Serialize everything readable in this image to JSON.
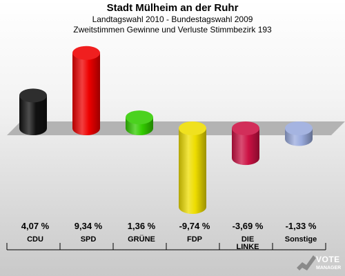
{
  "header": {
    "title": "Stadt Mülheim an der Ruhr",
    "subtitle1": "Landtagswahl 2010 - Bundestagswahl 2009",
    "subtitle2": "Zweitstimmen Gewinne und Verluste Stimmbezirk 193"
  },
  "chart_data": {
    "type": "bar",
    "title": "Stadt Mülheim an der Ruhr",
    "subtitle": "Landtagswahl 2010 - Bundestagswahl 2009 / Zweitstimmen Gewinne und Verluste Stimmbezirk 193",
    "unit": "%",
    "categories": [
      "CDU",
      "SPD",
      "GRÜNE",
      "FDP",
      "DIE LINKE",
      "Sonstige"
    ],
    "category_lines": [
      [
        "CDU"
      ],
      [
        "SPD"
      ],
      [
        "GRÜNE"
      ],
      [
        "FDP"
      ],
      [
        "DIE",
        "LINKE"
      ],
      [
        "Sonstige"
      ]
    ],
    "values": [
      4.07,
      9.34,
      1.36,
      -9.74,
      -3.69,
      -1.33
    ],
    "value_labels": [
      "4,07 %",
      "9,34 %",
      "1,36 %",
      "-9,74 %",
      "-3,69 %",
      "-1,33 %"
    ],
    "colors": [
      "#111111",
      "#ee0000",
      "#33cc00",
      "#eedd00",
      "#cc1144",
      "#99aadd"
    ],
    "ylim": [
      -10,
      10
    ],
    "grid": false,
    "legend": "none"
  },
  "logo": {
    "text1": "VOTE",
    "text2": "MANAGER"
  }
}
